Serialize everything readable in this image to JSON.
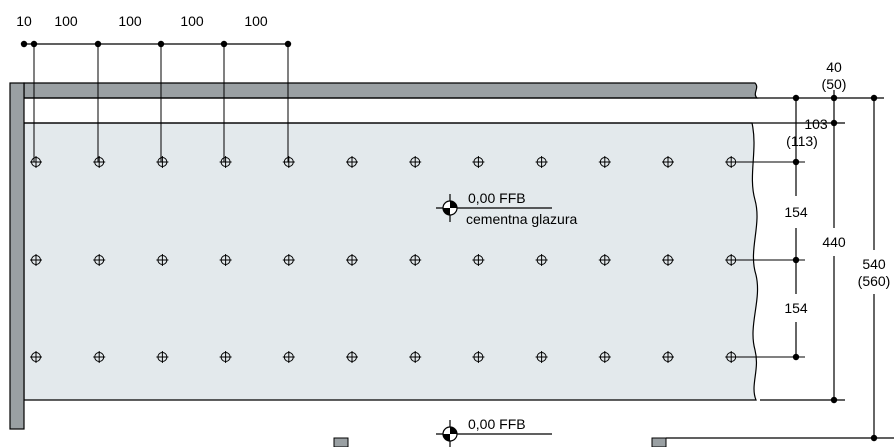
{
  "top_dims": [
    "10",
    "100",
    "100",
    "100",
    "100"
  ],
  "right_dims": {
    "top_offset": "40",
    "top_offset_alt": "(50)",
    "upper_gap": "103",
    "upper_gap_alt": "(113)",
    "spacing_1": "154",
    "spacing_2": "154",
    "inner_height": "440",
    "total_height": "540",
    "total_height_alt": "(560)"
  },
  "level_upper": {
    "label": "0,00 FFB",
    "sublabel": "cementna glazura"
  },
  "level_lower": {
    "label": "0,00 FFB"
  },
  "colors": {
    "panel_fill": "#e3e9ec",
    "wall_fill": "#9aa0a3",
    "line": "#000000"
  },
  "grid": {
    "columns": 12,
    "rows": 3
  }
}
